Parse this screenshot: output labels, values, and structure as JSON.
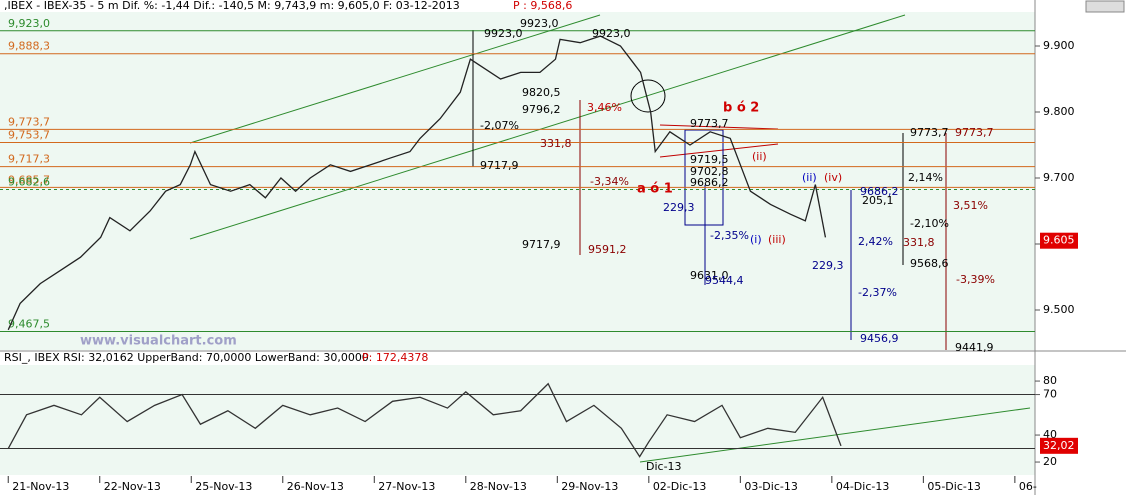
{
  "header": {
    "text": ",IBEX - IBEX-35 - 5 m Dif. %: -1,44 Dif.: -140,5 M: 9,743,9 m: 9,605,0 F: 03-12-2013",
    "price": "P : 9,568,6"
  },
  "watermark": "www.visualchart.com",
  "chart_data": [
    {
      "type": "line",
      "color": "#222222",
      "x": [
        0,
        0.13,
        0.35,
        0.57,
        0.79,
        1.01,
        1.11,
        1.33,
        1.55,
        1.72,
        1.88,
        1.99,
        2.04,
        2.21,
        2.43,
        2.64,
        2.81,
        2.98,
        3.14,
        3.3,
        3.52,
        3.74,
        3.96,
        4.17,
        4.39,
        4.5,
        4.72,
        4.94,
        5.05,
        5.16,
        5.38,
        5.6,
        5.81,
        5.98,
        6.03,
        6.25,
        6.47,
        6.69,
        6.91,
        7.02,
        7.07,
        7.23,
        7.45,
        7.67,
        7.89,
        8.0,
        8.11,
        8.33,
        8.55,
        8.71,
        8.82,
        8.93
      ],
      "values": [
        9470,
        9510,
        9540,
        9560,
        9580,
        9610,
        9640,
        9620,
        9650,
        9680,
        9690,
        9720,
        9740,
        9690,
        9680,
        9690,
        9670,
        9700,
        9680,
        9700,
        9720,
        9710,
        9720,
        9730,
        9740,
        9760,
        9790,
        9830,
        9880,
        9870,
        9850,
        9860,
        9860,
        9880,
        9910,
        9905,
        9915,
        9900,
        9860,
        9800,
        9740,
        9770,
        9750,
        9770,
        9760,
        9720,
        9680,
        9660,
        9645,
        9635,
        9690,
        9610
      ],
      "xlim": [
        -0.09,
        11.22
      ],
      "xticks": [
        {
          "value": 0,
          "label": "21-Nov-13"
        },
        {
          "value": 1,
          "label": "22-Nov-13"
        },
        {
          "value": 2,
          "label": "25-Nov-13"
        },
        {
          "value": 3,
          "label": "26-Nov-13"
        },
        {
          "value": 4,
          "label": "27-Nov-13"
        },
        {
          "value": 5,
          "label": "28-Nov-13"
        },
        {
          "value": 6,
          "label": "29-Nov-13"
        },
        {
          "value": 7,
          "label": "02-Dic-13"
        },
        {
          "value": 8,
          "label": "03-Dic-13"
        },
        {
          "value": 9,
          "label": "04-Dic-13"
        },
        {
          "value": 10,
          "label": "05-Dic-13"
        },
        {
          "value": 11,
          "label": "06-"
        }
      ],
      "ylim": [
        9439.4,
        9951.5
      ],
      "yticks": [
        {
          "value": 9500,
          "label": "9.500"
        },
        {
          "value": 9600,
          "label": "9.600"
        },
        {
          "value": 9700,
          "label": "9.700"
        },
        {
          "value": 9800,
          "label": "9.800"
        },
        {
          "value": 9900,
          "label": "9.900"
        }
      ],
      "last": {
        "value": 9605,
        "label": "9.605"
      },
      "levels": [
        {
          "value": 9923,
          "label": "9,923,0",
          "color": "#2e8b2e"
        },
        {
          "value": 9888.3,
          "label": "9,888,3",
          "color": "#d2691e"
        },
        {
          "value": 9773.7,
          "label": "9,773,7",
          "color": "#d2691e"
        },
        {
          "value": 9753.7,
          "label": "9,753,7",
          "color": "#d2691e"
        },
        {
          "value": 9717.3,
          "label": "9,717,3",
          "color": "#d2691e"
        },
        {
          "value": 9685.7,
          "label": "9,685,7",
          "color": "#d2691e"
        },
        {
          "value": 9682.6,
          "label": "9,682,6",
          "color": "#2e8b2e"
        },
        {
          "value": 9467.5,
          "label": "9,467,5",
          "color": "#2e8b2e"
        }
      ],
      "annotations": [
        {
          "text": "9923,0",
          "color": "#000"
        },
        {
          "text": "9923,0",
          "color": "#000"
        },
        {
          "text": "9923,0",
          "color": "#000"
        },
        {
          "text": "9820,5",
          "color": "#000"
        },
        {
          "text": "9796,2",
          "color": "#000"
        },
        {
          "text": "3,46%",
          "color": "#c00000"
        },
        {
          "text": "-2,07%",
          "color": "#000"
        },
        {
          "text": "331,8",
          "color": "#8b0000"
        },
        {
          "text": "9717,9",
          "color": "#000"
        },
        {
          "text": "-3,34%",
          "color": "#8b0000"
        },
        {
          "text": "9717,9",
          "color": "#000"
        },
        {
          "text": "9591,2",
          "color": "#8b0000"
        },
        {
          "text": "b ó 2",
          "color": "#d00000"
        },
        {
          "text": "a ó 1",
          "color": "#d00000"
        },
        {
          "text": "9773,7",
          "color": "#000"
        },
        {
          "text": "9719,5",
          "color": "#000"
        },
        {
          "text": "9702,8",
          "color": "#000"
        },
        {
          "text": "9686,2",
          "color": "#000"
        },
        {
          "text": "229,3",
          "color": "#00008b"
        },
        {
          "text": "-2,35%",
          "color": "#00008b"
        },
        {
          "text": "(i)",
          "color": "#0000c0"
        },
        {
          "text": "(iii)",
          "color": "#c00000"
        },
        {
          "text": "(ii)",
          "color": "#c00000"
        },
        {
          "text": "(ii)",
          "color": "#0000c0"
        },
        {
          "text": "(iv)",
          "color": "#c00000"
        },
        {
          "text": "9686,2",
          "color": "#00008b"
        },
        {
          "text": "205,1",
          "color": "#000"
        },
        {
          "text": "2,14%",
          "color": "#000"
        },
        {
          "text": "-2,10%",
          "color": "#000"
        },
        {
          "text": "3,51%",
          "color": "#8b0000"
        },
        {
          "text": "2,42%",
          "color": "#00008b"
        },
        {
          "text": "331,8",
          "color": "#8b0000"
        },
        {
          "text": "229,3",
          "color": "#00008b"
        },
        {
          "text": "9568,6",
          "color": "#000"
        },
        {
          "text": "-3,39%",
          "color": "#8b0000"
        },
        {
          "text": "-2,37%",
          "color": "#00008b"
        },
        {
          "text": "9456,9",
          "color": "#00008b"
        },
        {
          "text": "9441,9",
          "color": "#000"
        },
        {
          "text": "9773,7",
          "color": "#000"
        },
        {
          "text": "9773,7",
          "color": "#8b0000"
        },
        {
          "text": "9631,0",
          "color": "#000"
        },
        {
          "text": "9544,4",
          "color": "#00008b"
        }
      ]
    },
    {
      "type": "line",
      "color": "#333333",
      "title": "RSI_, IBEX RSI: 32,0162 UpperBand: 70,0000 LowerBand: 30,0000",
      "title_price": "P: 172,4378",
      "x": [
        0,
        0.2,
        0.5,
        0.8,
        1.0,
        1.3,
        1.6,
        1.9,
        2.1,
        2.4,
        2.7,
        3.0,
        3.3,
        3.6,
        3.9,
        4.2,
        4.5,
        4.8,
        5.0,
        5.3,
        5.6,
        5.9,
        6.1,
        6.4,
        6.7,
        6.9,
        7.0,
        7.2,
        7.5,
        7.8,
        8.0,
        8.3,
        8.6,
        8.9,
        9.1
      ],
      "values": [
        30,
        55,
        62,
        55,
        68,
        50,
        62,
        70,
        48,
        58,
        45,
        62,
        55,
        60,
        50,
        65,
        68,
        60,
        72,
        55,
        58,
        78,
        50,
        62,
        45,
        24,
        35,
        55,
        50,
        62,
        38,
        45,
        42,
        68,
        32
      ],
      "xlim": [
        -0.09,
        11.22
      ],
      "ylim": [
        10.4,
        91.9
      ],
      "yticks": [
        20,
        40,
        70,
        80
      ],
      "bands": [
        70,
        30
      ],
      "last": {
        "value": 32.02,
        "label": "32,02"
      },
      "marker": "Dic-13"
    }
  ]
}
